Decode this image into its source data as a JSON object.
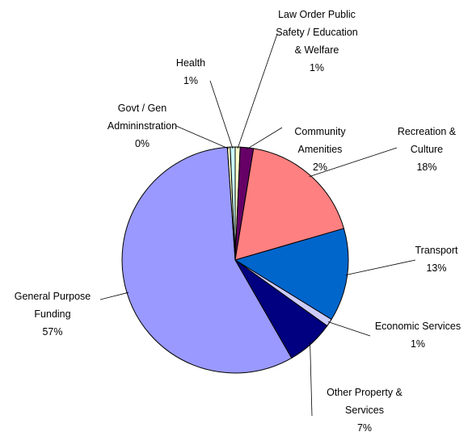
{
  "chart_data": {
    "type": "pie",
    "title": "",
    "slices": [
      {
        "name_lines": [
          "Law Order Public",
          "Safety / Education",
          "& Welfare"
        ],
        "percent_label": "1%",
        "value": 0.7,
        "color": "#FFFFCC"
      },
      {
        "name_lines": [
          "Community",
          "Amenities"
        ],
        "percent_label": "2%",
        "value": 1.9,
        "color": "#660066"
      },
      {
        "name_lines": [
          "Recreation &",
          "Culture"
        ],
        "percent_label": "18%",
        "value": 17.9,
        "color": "#FF8080"
      },
      {
        "name_lines": [
          "Transport"
        ],
        "percent_label": "13%",
        "value": 13.3,
        "color": "#0066CC"
      },
      {
        "name_lines": [
          "Economic Services"
        ],
        "percent_label": "1%",
        "value": 1.1,
        "color": "#CCCCFF"
      },
      {
        "name_lines": [
          "Other Property &",
          "Services"
        ],
        "percent_label": "7%",
        "value": 6.8,
        "color": "#000080"
      },
      {
        "name_lines": [
          "General Purpose",
          "Funding"
        ],
        "percent_label": "57%",
        "value": 57.2,
        "color": "#9999FF"
      },
      {
        "name_lines": [
          "Govt / Gen",
          "Admininstration"
        ],
        "percent_label": "0%",
        "value": 0.4,
        "color": "#FFFFCC"
      },
      {
        "name_lines": [
          "Health"
        ],
        "percent_label": "1%",
        "value": 0.7,
        "color": "#CCFFFF"
      }
    ]
  }
}
